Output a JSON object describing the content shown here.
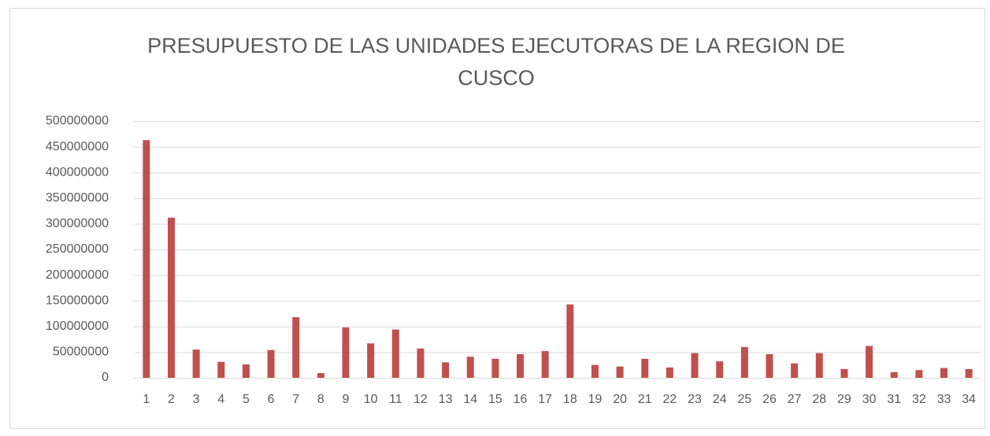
{
  "chart_data": {
    "type": "bar",
    "title": "PRESUPUESTO DE LAS UNIDADES EJECUTORAS DE LA REGION DE CUSCO",
    "categories": [
      "1",
      "2",
      "3",
      "4",
      "5",
      "6",
      "7",
      "8",
      "9",
      "10",
      "11",
      "12",
      "13",
      "14",
      "15",
      "16",
      "17",
      "18",
      "19",
      "20",
      "21",
      "22",
      "23",
      "24",
      "25",
      "26",
      "27",
      "28",
      "29",
      "30",
      "31",
      "32",
      "33",
      "34"
    ],
    "values": [
      463000000,
      312000000,
      55000000,
      31000000,
      26000000,
      54000000,
      118000000,
      9000000,
      98000000,
      67000000,
      94000000,
      57000000,
      30000000,
      41000000,
      37000000,
      46000000,
      52000000,
      143000000,
      25000000,
      22000000,
      37000000,
      20000000,
      48000000,
      32000000,
      60000000,
      46000000,
      28000000,
      48000000,
      17000000,
      62000000,
      11000000,
      15000000,
      19000000,
      17000000
    ],
    "color": "#c0504d",
    "ylim": [
      0,
      500000000
    ],
    "yticks": [
      0,
      50000000,
      100000000,
      150000000,
      200000000,
      250000000,
      300000000,
      350000000,
      400000000,
      450000000,
      500000000
    ],
    "grid": true
  }
}
